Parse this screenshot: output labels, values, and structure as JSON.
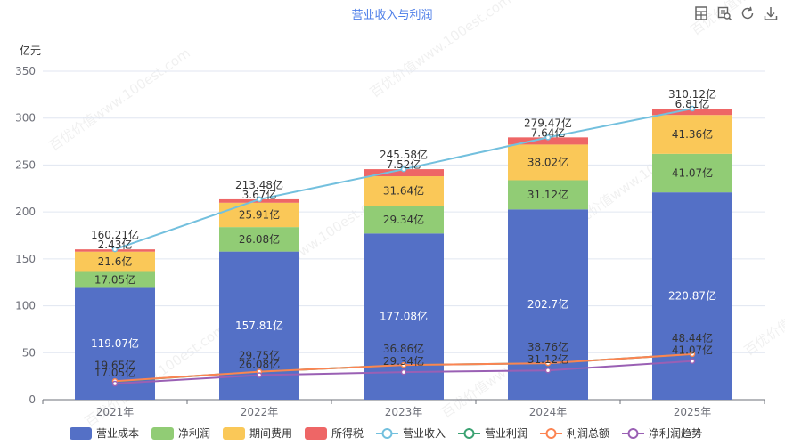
{
  "toolbar": {
    "icons": [
      "data-view-icon",
      "zoom-icon",
      "restore-icon",
      "download-icon"
    ]
  },
  "watermark": "百优价值www.100est.com",
  "colors": {
    "cost": "#5470c6",
    "net_profit": "#91cc75",
    "expense": "#fac858",
    "tax": "#ee6666",
    "revenue_line": "#73c0de",
    "op_profit_line": "#3ba272",
    "total_profit_line": "#fc8452",
    "net_trend_line": "#9a60b4",
    "title": "#4d7ee8"
  },
  "chart_data": {
    "type": "bar",
    "title": "营业收入与利润",
    "ylabel": "亿元",
    "ylim": [
      0,
      350
    ],
    "yticks": [
      0,
      50,
      100,
      150,
      200,
      250,
      300,
      350
    ],
    "grid": true,
    "legend_position": "bottom",
    "stacked": true,
    "categories": [
      "2021年",
      "2022年",
      "2023年",
      "2024年",
      "2025年"
    ],
    "series": [
      {
        "name": "营业成本",
        "kind": "bar",
        "color_key": "cost",
        "values": [
          119.07,
          157.81,
          177.08,
          202.7,
          220.87
        ],
        "labels": [
          "119.07亿",
          "157.81亿",
          "177.08亿",
          "202.7亿",
          "220.87亿"
        ]
      },
      {
        "name": "净利润",
        "kind": "bar",
        "color_key": "net_profit",
        "values": [
          17.05,
          26.08,
          29.34,
          31.12,
          41.07
        ],
        "labels": [
          "17.05亿",
          "26.08亿",
          "29.34亿",
          "31.12亿",
          "41.07亿"
        ]
      },
      {
        "name": "期间费用",
        "kind": "bar",
        "color_key": "expense",
        "values": [
          21.6,
          25.91,
          31.64,
          38.02,
          41.36
        ],
        "labels": [
          "21.6亿",
          "25.91亿",
          "31.64亿",
          "38.02亿",
          "41.36亿"
        ]
      },
      {
        "name": "所得税",
        "kind": "bar",
        "color_key": "tax",
        "values": [
          2.43,
          3.67,
          7.52,
          7.64,
          6.81
        ],
        "labels": [
          "2.43亿",
          "3.67亿",
          "7.52亿",
          "7.64亿",
          "6.81亿"
        ]
      },
      {
        "name": "营业收入",
        "kind": "line",
        "color_key": "revenue_line",
        "values": [
          160.21,
          213.48,
          245.58,
          279.47,
          310.12
        ],
        "labels": [
          "160.21亿",
          "213.48亿",
          "245.58亿",
          "279.47亿",
          "310.12亿"
        ]
      },
      {
        "name": "营业利润",
        "kind": "line",
        "color_key": "op_profit_line",
        "values": [
          19.45,
          29.75,
          36.85,
          38.75,
          48.44
        ],
        "labels": [
          "",
          "",
          "",
          "",
          ""
        ]
      },
      {
        "name": "利润总额",
        "kind": "line",
        "color_key": "total_profit_line",
        "values": [
          19.65,
          29.75,
          36.86,
          38.76,
          48.44
        ],
        "labels": [
          "19.65亿",
          "29.75亿",
          "36.86亿",
          "38.76亿",
          "48.44亿"
        ]
      },
      {
        "name": "净利润趋势",
        "kind": "line",
        "color_key": "net_trend_line",
        "values": [
          17.05,
          26.08,
          29.34,
          31.12,
          41.07
        ],
        "labels": [
          "17.05亿",
          "26.08亿",
          "29.34亿",
          "31.12亿",
          "41.07亿"
        ]
      }
    ]
  }
}
